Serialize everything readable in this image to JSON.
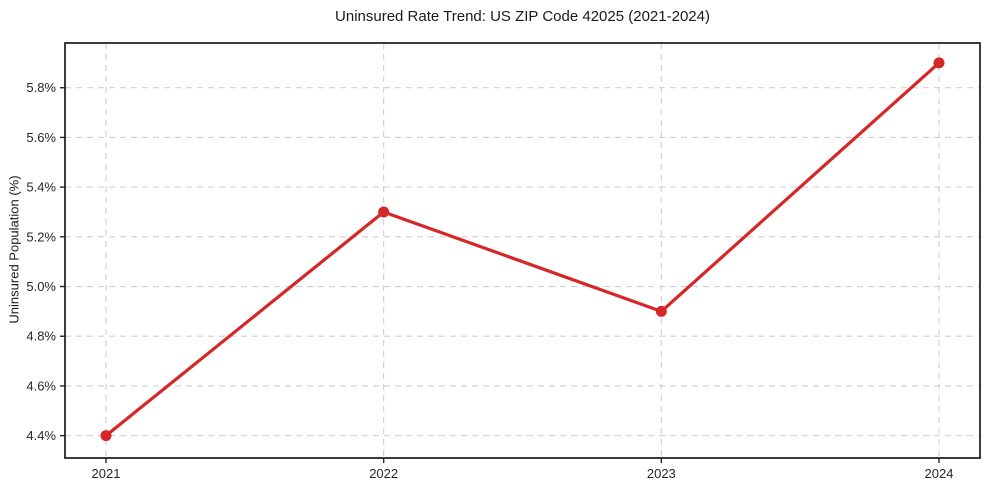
{
  "chart_data": {
    "type": "line",
    "title": "Uninsured Rate Trend: US ZIP Code 42025 (2021-2024)",
    "xlabel": "",
    "ylabel": "Uninsured Population (%)",
    "categories": [
      "2021",
      "2022",
      "2023",
      "2024"
    ],
    "series": [
      {
        "name": "Uninsured Population (%)",
        "values": [
          4.4,
          5.3,
          4.9,
          5.9
        ]
      }
    ],
    "yticks": [
      4.4,
      4.6,
      4.8,
      5.0,
      5.2,
      5.4,
      5.6,
      5.8
    ],
    "ytick_labels": [
      "4.4%",
      "4.6%",
      "4.8%",
      "5.0%",
      "5.2%",
      "5.4%",
      "5.6%",
      "5.8%"
    ],
    "ylim": [
      4.31,
      5.98
    ],
    "grid": true,
    "grid_style": "dashed",
    "legend": false,
    "line_color": "#d62728",
    "grid_color": "#cfcfcf",
    "axis_color": "#1a1a1a",
    "tick_color": "#262626"
  }
}
